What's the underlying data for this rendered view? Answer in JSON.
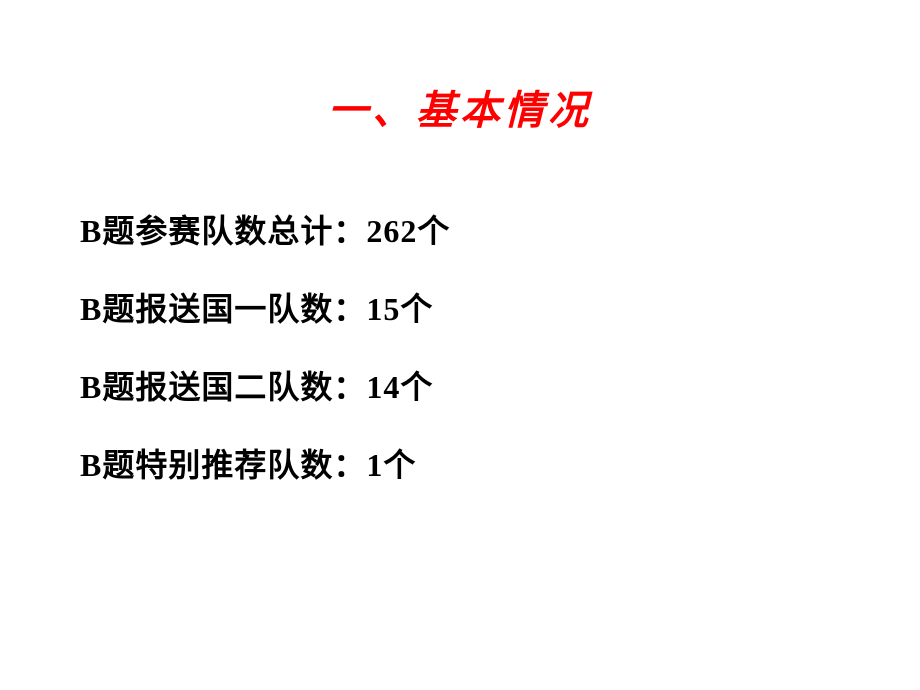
{
  "slide": {
    "title": "一、基本情况",
    "title_color": "#ff0000",
    "title_fontsize": 40,
    "lines": [
      "B题参赛队数总计：262个",
      "B题报送国一队数：15个",
      "B题报送国二队数：14个",
      "B题特别推荐队数：1个"
    ],
    "content_color": "#000000",
    "content_fontsize": 32,
    "line_spacing": 32,
    "background_color": "#ffffff"
  }
}
